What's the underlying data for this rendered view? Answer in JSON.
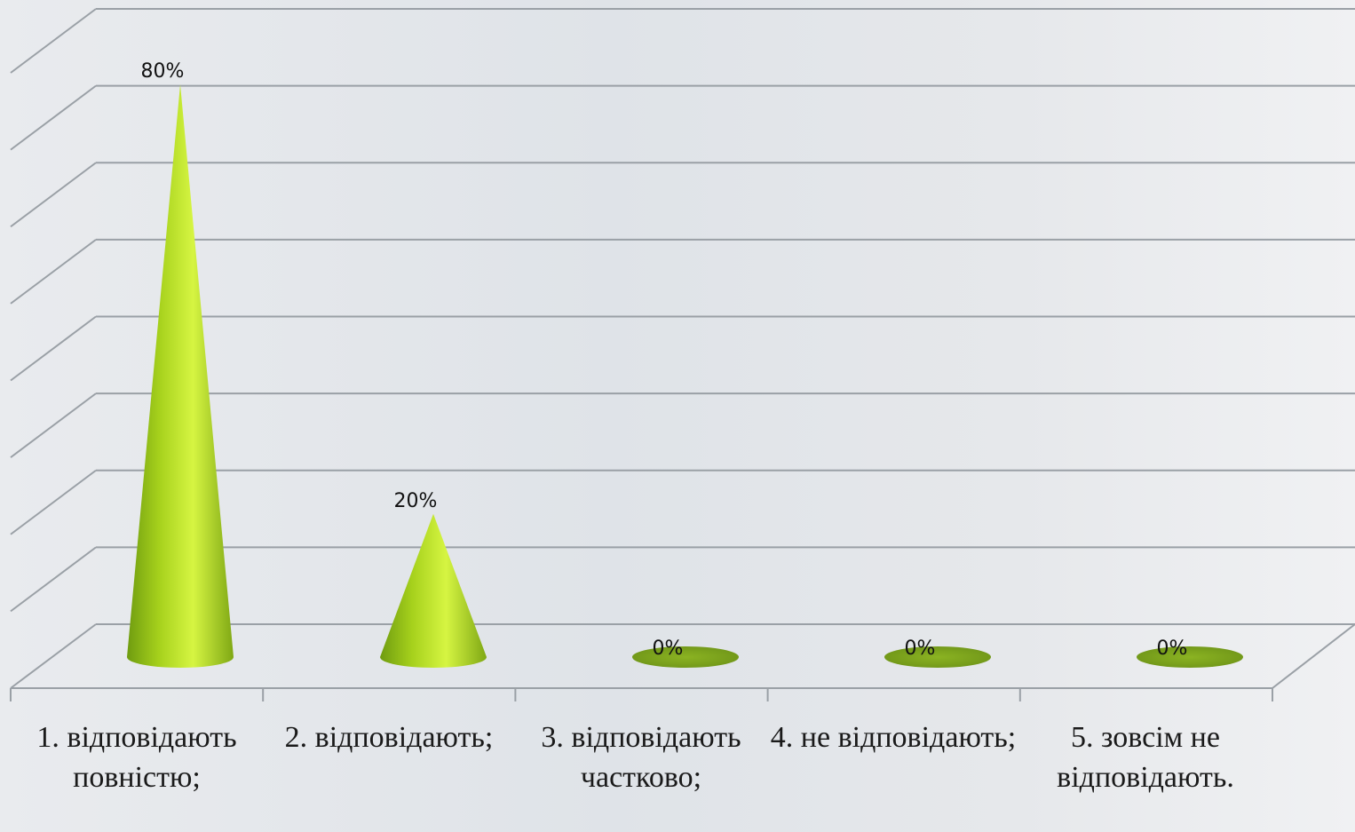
{
  "chart_data": {
    "type": "bar",
    "shape": "3d-cone",
    "categories": [
      "1. відповідають повністю;",
      "2. відповідають;",
      "3. відповідають частково;",
      "4. не відповідають;",
      "5. зовсім не відповідають."
    ],
    "values": [
      80,
      20,
      0,
      0,
      0
    ],
    "value_labels": [
      "80%",
      "20%",
      "0%",
      "0%",
      "0%"
    ],
    "unit": "%",
    "ylim": [
      0,
      90
    ],
    "title": "",
    "xlabel": "",
    "ylabel": "",
    "grid": true,
    "legend": "none",
    "colors": {
      "cone_light": "#d6f542",
      "cone_mid": "#a6d11c",
      "cone_dark": "#6f9c10",
      "flat": "#7da51d",
      "grid": "#9aa0a6"
    }
  }
}
